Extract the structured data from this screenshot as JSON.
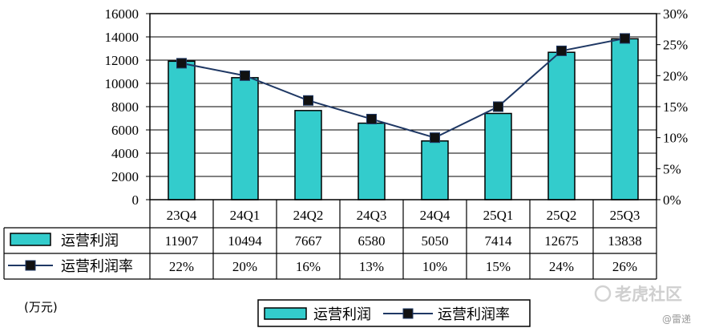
{
  "chart_data": {
    "type": "bar",
    "combo": true,
    "categories": [
      "23Q4",
      "24Q1",
      "24Q2",
      "24Q3",
      "24Q4",
      "25Q1",
      "25Q2",
      "25Q3"
    ],
    "series": [
      {
        "name": "运营利润",
        "type": "bar",
        "axis": "left",
        "values": [
          11907,
          10494,
          7667,
          6580,
          5050,
          7414,
          12675,
          13838
        ]
      },
      {
        "name": "运营利润率",
        "type": "line",
        "axis": "right",
        "values": [
          22,
          20,
          16,
          13,
          10,
          15,
          24,
          26
        ],
        "value_labels": [
          "22%",
          "20%",
          "16%",
          "13%",
          "10%",
          "15%",
          "24%",
          "26%"
        ]
      }
    ],
    "y_left": {
      "range": [
        0,
        16000
      ],
      "ticks": [
        0,
        2000,
        4000,
        6000,
        8000,
        10000,
        12000,
        14000,
        16000
      ]
    },
    "y_right": {
      "range": [
        0,
        30
      ],
      "ticks": [
        0,
        5,
        10,
        15,
        20,
        25,
        30
      ],
      "tick_labels": [
        "0%",
        "5%",
        "10%",
        "15%",
        "20%",
        "25%",
        "30%"
      ]
    },
    "unit_label": "(万元)",
    "grid": true,
    "data_table": true,
    "legend": {
      "placement": "bottom"
    },
    "colors": {
      "bar": "#33CCCC",
      "line": "#1F3864",
      "marker": "#111111",
      "grid": "#000000"
    }
  },
  "watermark": {
    "text": "老虎社区",
    "source": "@雷递"
  }
}
